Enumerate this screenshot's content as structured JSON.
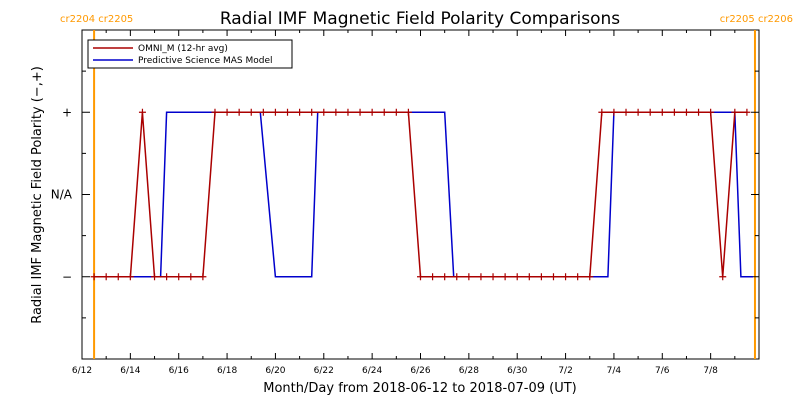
{
  "chart_data": {
    "type": "line",
    "title": "Radial IMF Magnetic Field Polarity Comparisons",
    "xlabel": "Month/Day from 2018-06-12 to 2018-07-09 (UT)",
    "ylabel": "Radial IMF Magnetic Field Polarity (−,+)",
    "xlim": [
      "2018-06-12T00:00",
      "2018-07-10T00:00"
    ],
    "ylim": [
      -2,
      2
    ],
    "xticks": [
      {
        "date": "2018-06-12T00:00",
        "label": "6/12"
      },
      {
        "date": "2018-06-14T00:00",
        "label": "6/14"
      },
      {
        "date": "2018-06-16T00:00",
        "label": "6/16"
      },
      {
        "date": "2018-06-18T00:00",
        "label": "6/18"
      },
      {
        "date": "2018-06-20T00:00",
        "label": "6/20"
      },
      {
        "date": "2018-06-22T00:00",
        "label": "6/22"
      },
      {
        "date": "2018-06-24T00:00",
        "label": "6/24"
      },
      {
        "date": "2018-06-26T00:00",
        "label": "6/26"
      },
      {
        "date": "2018-06-28T00:00",
        "label": "6/28"
      },
      {
        "date": "2018-06-30T00:00",
        "label": "6/30"
      },
      {
        "date": "2018-07-02T00:00",
        "label": "7/2"
      },
      {
        "date": "2018-07-04T00:00",
        "label": "7/4"
      },
      {
        "date": "2018-07-06T00:00",
        "label": "7/6"
      },
      {
        "date": "2018-07-08T00:00",
        "label": "7/8"
      }
    ],
    "yticks": [
      {
        "value": 1,
        "label": "+"
      },
      {
        "value": 0,
        "label": "N/A"
      },
      {
        "value": -1,
        "label": "−"
      }
    ],
    "carrington": {
      "color": "#ff9900",
      "left_label": "cr2204 cr2205",
      "right_label": "cr2205 cr2206",
      "boundaries": [
        "2018-06-12T12:00",
        "2018-07-09T20:00"
      ]
    },
    "legend_position": "top-left",
    "series": [
      {
        "name": "OMNI_M (12-hr avg)",
        "color": "#aa0000",
        "markers": true,
        "x": [
          "2018-06-12T12:00",
          "2018-06-13T00:00",
          "2018-06-13T12:00",
          "2018-06-14T00:00",
          "2018-06-14T12:00",
          "2018-06-15T00:00",
          "2018-06-15T12:00",
          "2018-06-16T00:00",
          "2018-06-16T12:00",
          "2018-06-17T00:00",
          "2018-06-17T12:00",
          "2018-06-18T00:00",
          "2018-06-18T12:00",
          "2018-06-19T00:00",
          "2018-06-19T12:00",
          "2018-06-20T00:00",
          "2018-06-20T12:00",
          "2018-06-21T00:00",
          "2018-06-21T12:00",
          "2018-06-22T00:00",
          "2018-06-22T12:00",
          "2018-06-23T00:00",
          "2018-06-23T12:00",
          "2018-06-24T00:00",
          "2018-06-24T12:00",
          "2018-06-25T00:00",
          "2018-06-25T12:00",
          "2018-06-26T00:00",
          "2018-06-26T12:00",
          "2018-06-27T00:00",
          "2018-06-27T12:00",
          "2018-06-28T00:00",
          "2018-06-28T12:00",
          "2018-06-29T00:00",
          "2018-06-29T12:00",
          "2018-06-30T00:00",
          "2018-06-30T12:00",
          "2018-07-01T00:00",
          "2018-07-01T12:00",
          "2018-07-02T00:00",
          "2018-07-02T12:00",
          "2018-07-03T00:00",
          "2018-07-03T12:00",
          "2018-07-04T00:00",
          "2018-07-04T12:00",
          "2018-07-05T00:00",
          "2018-07-05T12:00",
          "2018-07-06T00:00",
          "2018-07-06T12:00",
          "2018-07-07T00:00",
          "2018-07-07T12:00",
          "2018-07-08T00:00",
          "2018-07-08T12:00",
          "2018-07-09T00:00",
          "2018-07-09T12:00"
        ],
        "values": [
          -1,
          -1,
          -1,
          -1,
          1,
          -1,
          -1,
          -1,
          -1,
          -1,
          1,
          1,
          1,
          1,
          1,
          1,
          1,
          1,
          1,
          1,
          1,
          1,
          1,
          1,
          1,
          1,
          1,
          -1,
          -1,
          -1,
          -1,
          -1,
          -1,
          -1,
          -1,
          -1,
          -1,
          -1,
          -1,
          -1,
          -1,
          -1,
          1,
          1,
          1,
          1,
          1,
          1,
          1,
          1,
          1,
          1,
          -1,
          1,
          1
        ]
      },
      {
        "name": "Predictive Science MAS Model",
        "color": "#0000cc",
        "markers": false,
        "x": [
          "2018-06-12T12:00",
          "2018-06-15T06:00",
          "2018-06-15T12:00",
          "2018-06-19T09:00",
          "2018-06-20T00:00",
          "2018-06-21T12:00",
          "2018-06-21T18:00",
          "2018-06-27T00:00",
          "2018-06-27T09:00",
          "2018-07-03T18:00",
          "2018-07-04T00:00",
          "2018-07-09T00:00",
          "2018-07-09T06:00",
          "2018-07-09T18:00"
        ],
        "values": [
          -1,
          -1,
          1,
          1,
          -1,
          -1,
          1,
          1,
          -1,
          -1,
          1,
          1,
          -1,
          -1
        ]
      }
    ]
  }
}
